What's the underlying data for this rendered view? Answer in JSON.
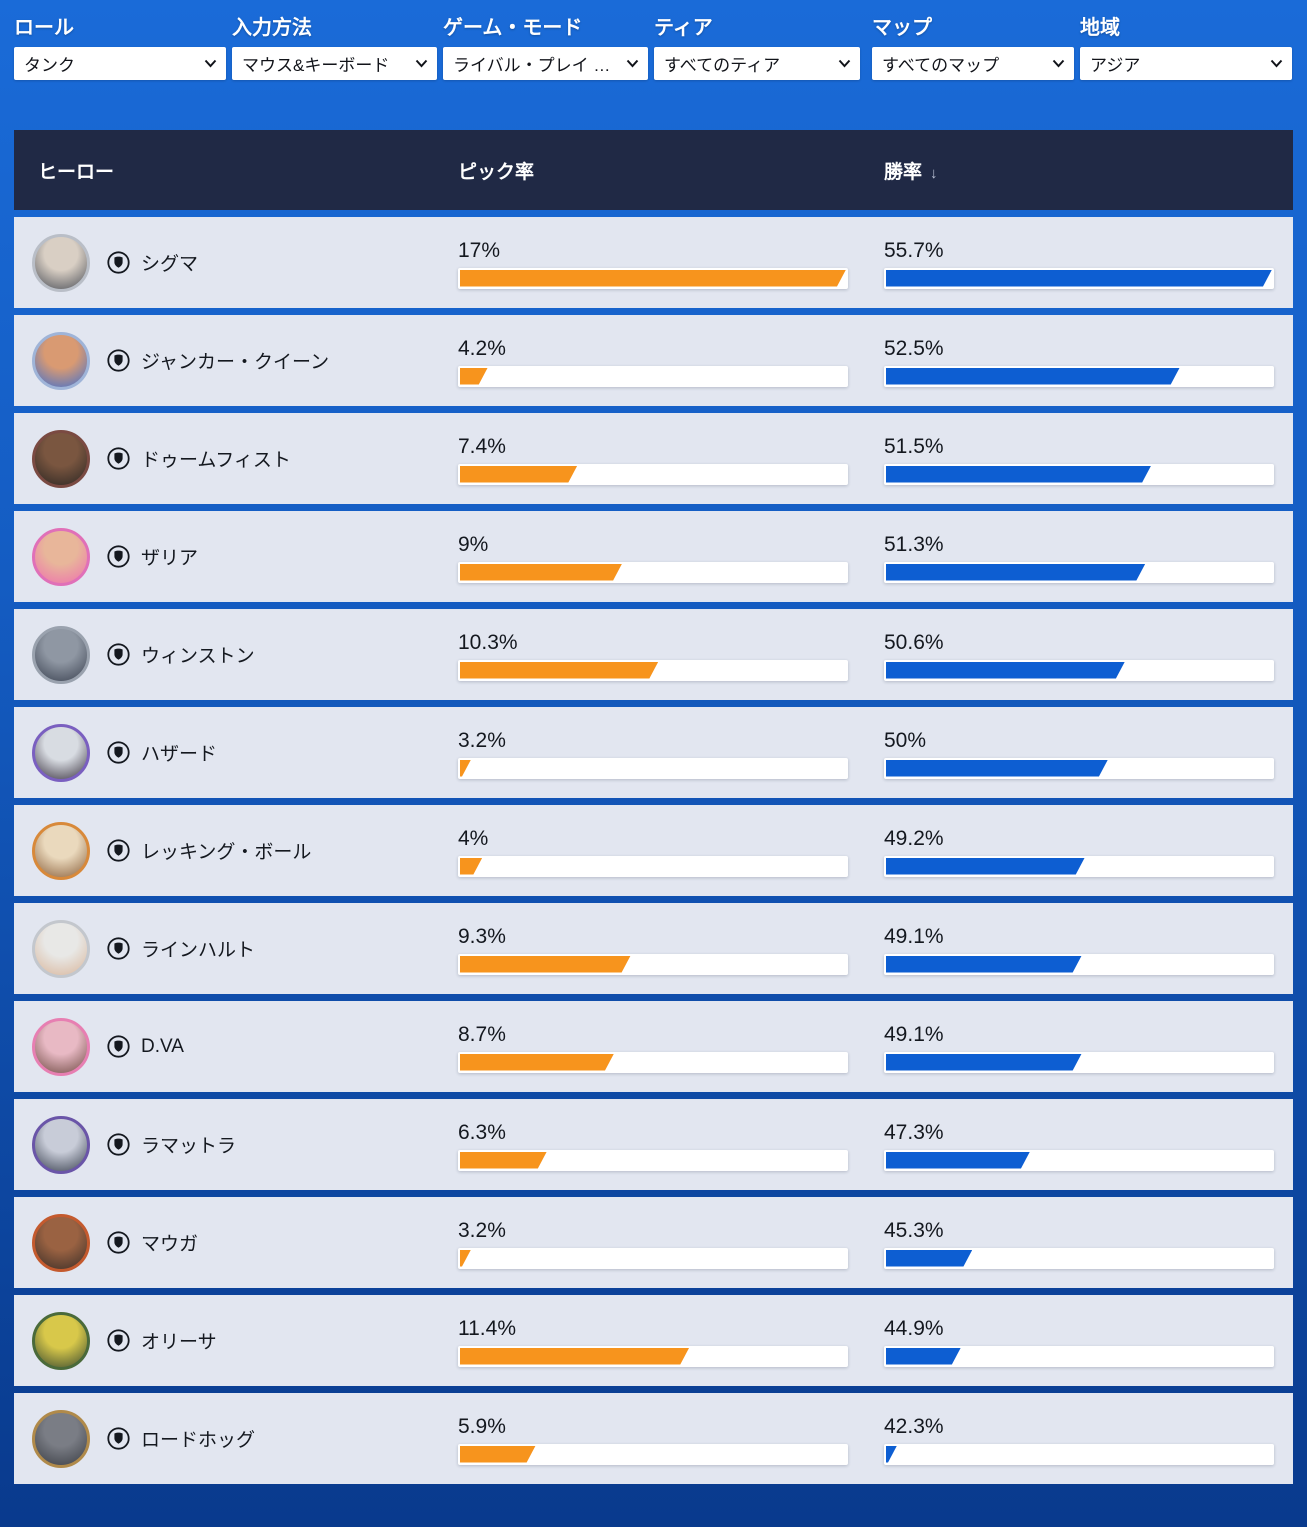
{
  "filters": [
    {
      "id": "role",
      "label": "ロール",
      "value": "タンク"
    },
    {
      "id": "input",
      "label": "入力方法",
      "value": "マウス&キーボード"
    },
    {
      "id": "game-mode",
      "label": "ゲーム・モード",
      "value": "ライバル・プレイ …"
    },
    {
      "id": "tier",
      "label": "ティア",
      "value": "すべてのティア"
    },
    {
      "id": "map",
      "label": "マップ",
      "value": "すべてのマップ"
    },
    {
      "id": "region",
      "label": "地域",
      "value": "アジア"
    }
  ],
  "table": {
    "columns": {
      "hero": "ヒーロー",
      "pick_rate": "ピック率",
      "win_rate": "勝率"
    },
    "sort": {
      "column": "win_rate",
      "direction": "desc",
      "icon": "↓"
    },
    "rows": [
      {
        "name": "シグマ",
        "pick_label": "17%",
        "pick_value": 17,
        "win_label": "55.7%",
        "win_value": 55.7,
        "avatar": {
          "ring": "#b9bec7",
          "c1": "#d9cfc4",
          "c2": "#4a4e57"
        }
      },
      {
        "name": "ジャンカー・クイーン",
        "pick_label": "4.2%",
        "pick_value": 4.2,
        "win_label": "52.5%",
        "win_value": 52.5,
        "avatar": {
          "ring": "#9fb4d8",
          "c1": "#d99a72",
          "c2": "#3e6fd0"
        }
      },
      {
        "name": "ドゥームフィスト",
        "pick_label": "7.4%",
        "pick_value": 7.4,
        "win_label": "51.5%",
        "win_value": 51.5,
        "avatar": {
          "ring": "#7a4a42",
          "c1": "#7a5640",
          "c2": "#2b2623"
        }
      },
      {
        "name": "ザリア",
        "pick_label": "9%",
        "pick_value": 9,
        "win_label": "51.3%",
        "win_value": 51.3,
        "avatar": {
          "ring": "#e070b8",
          "c1": "#e8b69a",
          "c2": "#ee6fae"
        }
      },
      {
        "name": "ウィンストン",
        "pick_label": "10.3%",
        "pick_value": 10.3,
        "win_label": "50.6%",
        "win_value": 50.6,
        "avatar": {
          "ring": "#9aa2ae",
          "c1": "#8f97a3",
          "c2": "#3a4150"
        }
      },
      {
        "name": "ハザード",
        "pick_label": "3.2%",
        "pick_value": 3.2,
        "win_label": "50%",
        "win_value": 50,
        "avatar": {
          "ring": "#7a5fc0",
          "c1": "#d8dce2",
          "c2": "#3a3340"
        }
      },
      {
        "name": "レッキング・ボール",
        "pick_label": "4%",
        "pick_value": 4,
        "win_label": "49.2%",
        "win_value": 49.2,
        "avatar": {
          "ring": "#d8893a",
          "c1": "#ead9bd",
          "c2": "#8a5f3a"
        }
      },
      {
        "name": "ラインハルト",
        "pick_label": "9.3%",
        "pick_value": 9.3,
        "win_label": "49.1%",
        "win_value": 49.1,
        "avatar": {
          "ring": "#c3c7cd",
          "c1": "#e8e8e6",
          "c2": "#d9b59a"
        }
      },
      {
        "name": "D.VA",
        "pick_label": "8.7%",
        "pick_value": 8.7,
        "win_label": "49.1%",
        "win_value": 49.1,
        "avatar": {
          "ring": "#e77fb2",
          "c1": "#e8b9c4",
          "c2": "#6e4a42"
        }
      },
      {
        "name": "ラマットラ",
        "pick_label": "6.3%",
        "pick_value": 6.3,
        "win_label": "47.3%",
        "win_value": 47.3,
        "avatar": {
          "ring": "#6a55a8",
          "c1": "#c8ccd8",
          "c2": "#39404f"
        }
      },
      {
        "name": "マウガ",
        "pick_label": "3.2%",
        "pick_value": 3.2,
        "win_label": "45.3%",
        "win_value": 45.3,
        "avatar": {
          "ring": "#c45a2e",
          "c1": "#9a6242",
          "c2": "#3a2e28"
        }
      },
      {
        "name": "オリーサ",
        "pick_label": "11.4%",
        "pick_value": 11.4,
        "win_label": "44.9%",
        "win_value": 44.9,
        "avatar": {
          "ring": "#4a6a3a",
          "c1": "#d8c84a",
          "c2": "#3a4a30"
        }
      },
      {
        "name": "ロードホッグ",
        "pick_label": "5.9%",
        "pick_value": 5.9,
        "win_label": "42.3%",
        "win_value": 42.3,
        "avatar": {
          "ring": "#b08a4a",
          "c1": "#7a7d85",
          "c2": "#3a3d44"
        }
      }
    ]
  },
  "colors": {
    "accent_orange": "#F7941D",
    "accent_blue": "#0D5ED2",
    "header_bg": "#202945",
    "row_bg": "#E2E6F0",
    "page_top": "#1A6BD8",
    "page_bottom": "#093A8D"
  }
}
